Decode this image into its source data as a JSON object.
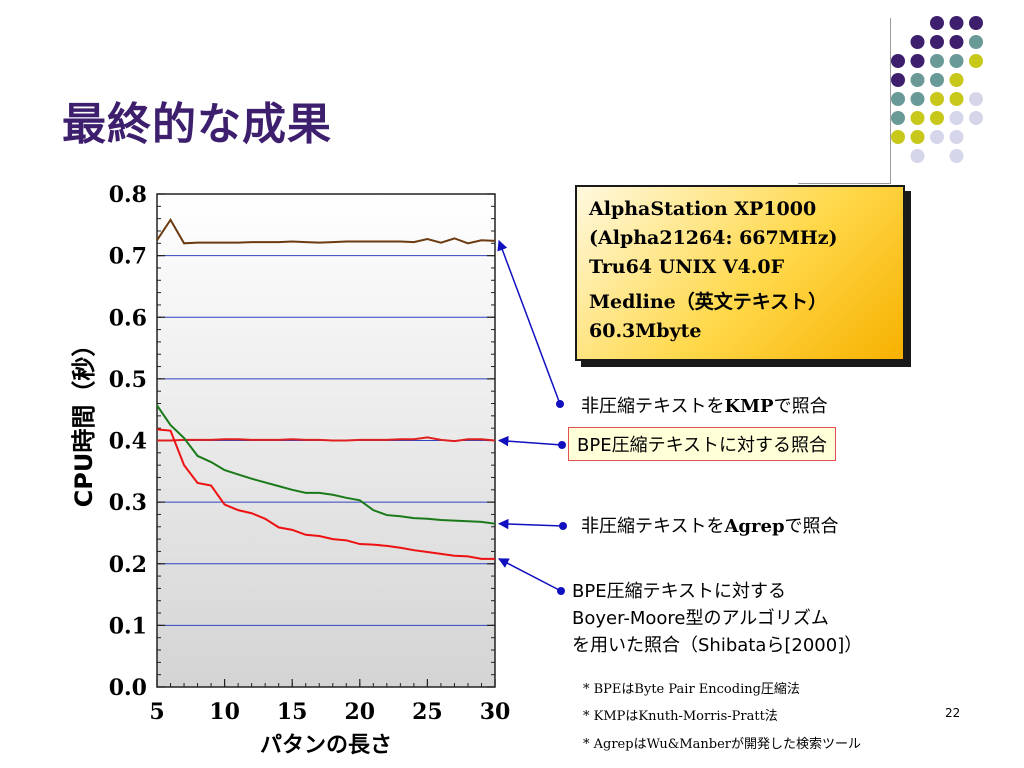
{
  "slide": {
    "title": "最終的な成果",
    "page_number": "22"
  },
  "info_box": {
    "lines": [
      "AlphaStation XP1000",
      "(Alpha21264: 667MHz)",
      "Tru64 UNIX V4.0F",
      "Medline（英文テキスト）",
      "60.3Mbyte"
    ]
  },
  "annotations": {
    "kmp_plain": {
      "pre": "非圧縮テキストを",
      "bold": "KMP",
      "post": "で照合"
    },
    "bpe_kmp": {
      "text": "BPE圧縮テキストに対する照合"
    },
    "agrep_plain": {
      "pre": "非圧縮テキストを",
      "bold": "Agrep",
      "post": "で照合"
    },
    "bpe_bm": {
      "lines": [
        "BPE圧縮テキストに対する",
        "Boyer-Moore型のアルゴリズム",
        "を用いた照合（Shibataら[2000]）"
      ]
    }
  },
  "notes": [
    "* BPEはByte Pair Encoding圧縮法",
    "* KMPはKnuth-Morris-Pratt法",
    "* AgrepはWu&Manberが開発した検索ツール"
  ],
  "colors": {
    "title": "#3d1f6e",
    "arrow": "#1010c0",
    "grid": "#3040c0",
    "series_kmp": "#6b3a10",
    "series_bpe_kmp": "#e02020",
    "series_agrep": "#1a7a1a",
    "series_bpe_bm": "#ee1111",
    "dot_purple": "#3d1f6e",
    "dot_teal": "#6a9a98",
    "dot_yellow": "#c8c81a",
    "dot_lavender": "#d6d6ea"
  },
  "chart_data": {
    "type": "line",
    "xlabel": "パタンの長さ",
    "ylabel": "CPU時間（秒）",
    "xlim": [
      5,
      30
    ],
    "ylim": [
      0,
      0.8
    ],
    "x_ticks": [
      "5",
      "10",
      "15",
      "20",
      "25",
      "30"
    ],
    "y_ticks": [
      "0.0",
      "0.1",
      "0.2",
      "0.3",
      "0.4",
      "0.5",
      "0.6",
      "0.7",
      "0.8"
    ],
    "grid": true,
    "x": [
      5,
      6,
      7,
      8,
      9,
      10,
      11,
      12,
      13,
      14,
      15,
      16,
      17,
      18,
      19,
      20,
      21,
      22,
      23,
      24,
      25,
      26,
      27,
      28,
      29,
      30
    ],
    "series": [
      {
        "values": [
          0.725,
          0.758,
          0.72,
          0.721,
          0.721,
          0.721,
          0.721,
          0.722,
          0.722,
          0.722,
          0.723,
          0.722,
          0.721,
          0.722,
          0.723,
          0.723,
          0.723,
          0.723,
          0.723,
          0.722,
          0.727,
          0.721,
          0.728,
          0.72,
          0.725,
          0.724
        ]
      },
      {
        "values": [
          0.4,
          0.4,
          0.401,
          0.401,
          0.401,
          0.402,
          0.402,
          0.401,
          0.401,
          0.401,
          0.402,
          0.401,
          0.401,
          0.4,
          0.4,
          0.401,
          0.401,
          0.401,
          0.402,
          0.402,
          0.405,
          0.401,
          0.399,
          0.402,
          0.402,
          0.4
        ]
      },
      {
        "values": [
          0.457,
          0.425,
          0.404,
          0.375,
          0.365,
          0.352,
          0.345,
          0.338,
          0.332,
          0.326,
          0.32,
          0.315,
          0.315,
          0.312,
          0.307,
          0.303,
          0.287,
          0.279,
          0.277,
          0.274,
          0.273,
          0.271,
          0.27,
          0.269,
          0.268,
          0.265
        ]
      },
      {
        "values": [
          0.418,
          0.416,
          0.36,
          0.331,
          0.327,
          0.296,
          0.287,
          0.282,
          0.273,
          0.259,
          0.255,
          0.247,
          0.245,
          0.24,
          0.238,
          0.232,
          0.231,
          0.229,
          0.226,
          0.222,
          0.219,
          0.216,
          0.213,
          0.212,
          0.208,
          0.208
        ]
      }
    ]
  }
}
